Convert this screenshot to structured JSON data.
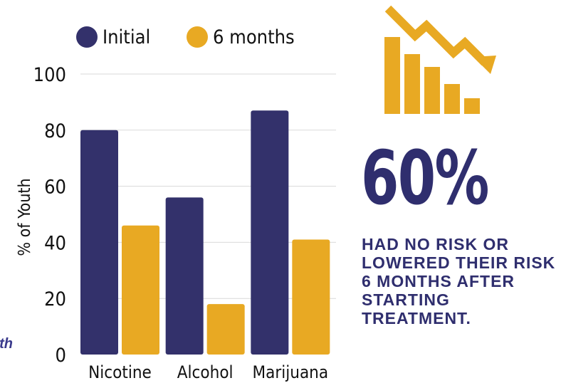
{
  "colors": {
    "series_initial": "#33316b",
    "series_6months": "#e8a923",
    "grid": "#d9d9d9",
    "text": "#111111",
    "accent_text": "#2f2e6e",
    "cut_text": "#3a3a8c"
  },
  "chart_data": {
    "type": "bar",
    "categories": [
      "Nicotine",
      "Alcohol",
      "Marijuana"
    ],
    "series": [
      {
        "name": "Initial",
        "values": [
          80,
          56,
          87
        ]
      },
      {
        "name": "6 months",
        "values": [
          46,
          18,
          41
        ]
      }
    ],
    "ylabel": "% of Youth",
    "xlabel": "",
    "ylim": [
      0,
      100
    ],
    "yticks": [
      0,
      20,
      40,
      60,
      80,
      100
    ],
    "grid": true,
    "legend_position": "top"
  },
  "stat": {
    "value": "60%",
    "caption": "HAD NO RISK OR LOWERED THEIR RISK 6 MONTHS AFTER STARTING TREATMENT.",
    "icon": "declining-bar-chart-icon"
  },
  "cut_text": "th"
}
